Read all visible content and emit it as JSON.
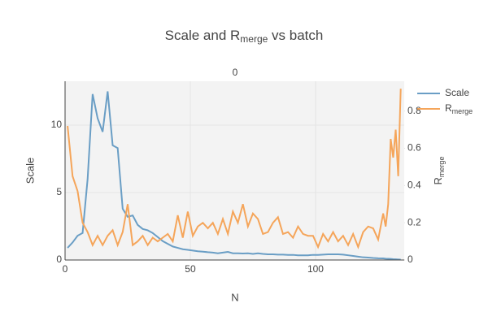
{
  "chart_data": {
    "type": "line",
    "title": [
      "Scale and R",
      "merge",
      " vs batch"
    ],
    "facet_label": "0",
    "xlabel": "N",
    "ylabel": "Scale",
    "y2label": [
      "R",
      "merge"
    ],
    "x": [
      1,
      3,
      5,
      7,
      9,
      11,
      13,
      15,
      17,
      19,
      21,
      23,
      25,
      27,
      29,
      31,
      33,
      35,
      37,
      39,
      41,
      43,
      45,
      47,
      49,
      51,
      53,
      55,
      57,
      59,
      61,
      63,
      65,
      67,
      69,
      71,
      73,
      75,
      77,
      79,
      81,
      83,
      85,
      87,
      89,
      91,
      93,
      95,
      97,
      99,
      101,
      103,
      105,
      107,
      109,
      111,
      113,
      115,
      117,
      119,
      121,
      123,
      125,
      127,
      128,
      129,
      130,
      131,
      132,
      133,
      134
    ],
    "series": [
      {
        "name": [
          "Scale"
        ],
        "color": "#6a9ec5",
        "values": [
          0.9,
          1.3,
          1.8,
          2.0,
          6.0,
          12.3,
          10.5,
          9.5,
          12.5,
          8.5,
          8.3,
          3.8,
          3.2,
          3.3,
          2.6,
          2.3,
          2.2,
          2.0,
          1.7,
          1.4,
          1.2,
          1.0,
          0.9,
          0.8,
          0.75,
          0.7,
          0.65,
          0.62,
          0.58,
          0.55,
          0.5,
          0.55,
          0.6,
          0.5,
          0.5,
          0.48,
          0.5,
          0.45,
          0.5,
          0.45,
          0.42,
          0.42,
          0.4,
          0.4,
          0.38,
          0.38,
          0.35,
          0.35,
          0.35,
          0.38,
          0.38,
          0.4,
          0.42,
          0.42,
          0.42,
          0.4,
          0.35,
          0.3,
          0.25,
          0.2,
          0.18,
          0.15,
          0.13,
          0.12,
          0.1,
          0.09,
          0.08,
          0.06,
          0.05,
          0.04,
          0.03
        ]
      },
      {
        "name": [
          "R",
          "merge"
        ],
        "color": "#f5a55a",
        "axis": "y2",
        "values": [
          0.72,
          0.45,
          0.37,
          0.2,
          0.15,
          0.08,
          0.13,
          0.08,
          0.13,
          0.16,
          0.08,
          0.15,
          0.3,
          0.08,
          0.1,
          0.13,
          0.08,
          0.12,
          0.1,
          0.12,
          0.14,
          0.1,
          0.24,
          0.12,
          0.26,
          0.13,
          0.18,
          0.2,
          0.17,
          0.2,
          0.14,
          0.22,
          0.14,
          0.26,
          0.2,
          0.3,
          0.18,
          0.25,
          0.22,
          0.14,
          0.15,
          0.2,
          0.23,
          0.14,
          0.15,
          0.12,
          0.18,
          0.14,
          0.13,
          0.13,
          0.07,
          0.14,
          0.1,
          0.15,
          0.1,
          0.13,
          0.08,
          0.14,
          0.07,
          0.15,
          0.18,
          0.17,
          0.11,
          0.25,
          0.18,
          0.3,
          0.65,
          0.55,
          0.7,
          0.45,
          0.92
        ]
      }
    ],
    "xlim": [
      0,
      135.4
    ],
    "xticks": [
      0,
      50,
      100
    ],
    "ylim": [
      0,
      13.25
    ],
    "yticks": [
      0,
      5,
      10
    ],
    "y2lim": [
      0,
      0.96
    ],
    "y2ticks": [
      0,
      0.2,
      0.4,
      0.6,
      0.8
    ],
    "grid": true
  }
}
